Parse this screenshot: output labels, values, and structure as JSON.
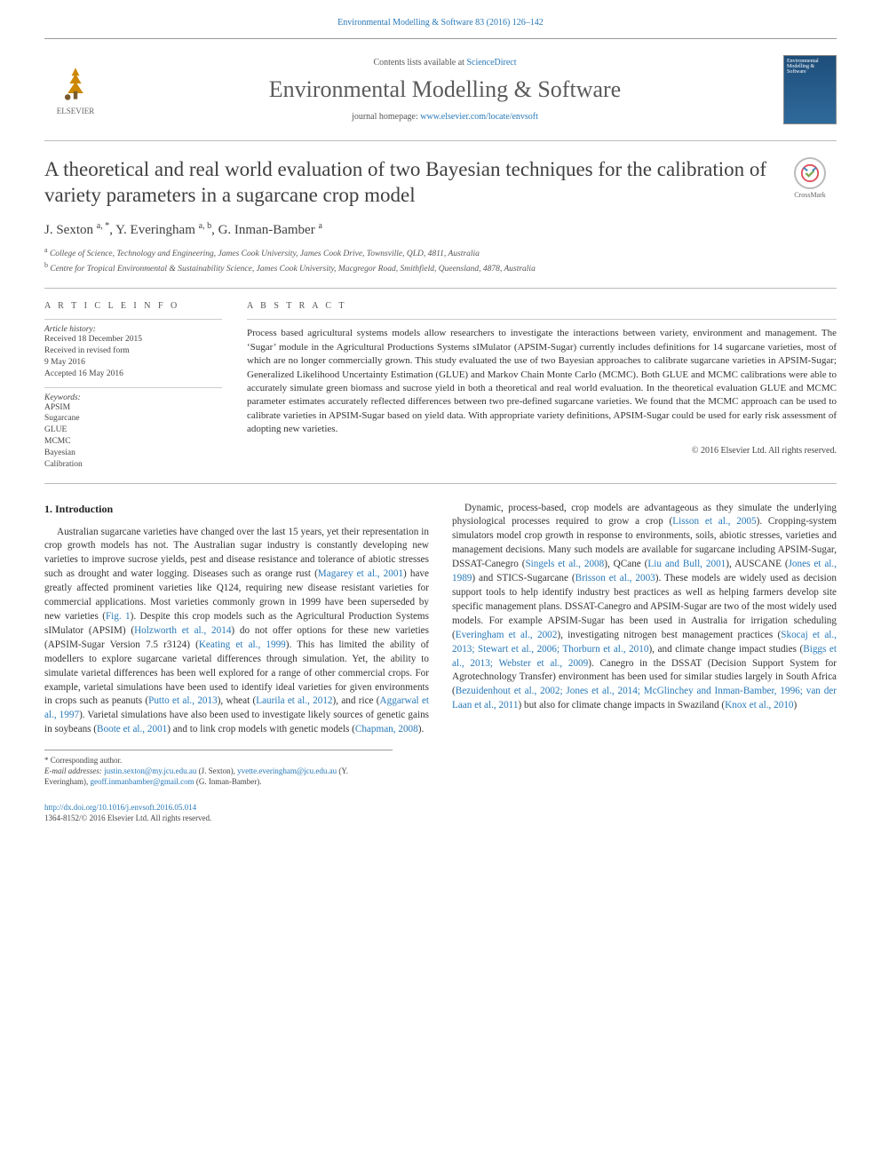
{
  "running_head": "Environmental Modelling & Software 83 (2016) 126–142",
  "masthead": {
    "contents_prefix": "Contents lists available at ",
    "contents_link": "ScienceDirect",
    "journal": "Environmental Modelling & Software",
    "homepage_prefix": "journal homepage: ",
    "homepage_link": "www.elsevier.com/locate/envsoft",
    "publisher": "ELSEVIER"
  },
  "cover_thumb": {
    "top_text": "Environmental Modelling & Software",
    "accent_color": "#1e4e7a"
  },
  "title": "A theoretical and real world evaluation of two Bayesian techniques for the calibration of variety parameters in a sugarcane crop model",
  "crossmark_label": "CrossMark",
  "authors_html": "J. Sexton <sup>a, *</sup>, Y. Everingham <sup>a, b</sup>, G. Inman-Bamber <sup>a</sup>",
  "affiliations": [
    {
      "sup": "a",
      "text": "College of Science, Technology and Engineering, James Cook University, James Cook Drive, Townsville, QLD, 4811, Australia"
    },
    {
      "sup": "b",
      "text": "Centre for Tropical Environmental & Sustainability Science, James Cook University, Macgregor Road, Smithfield, Queensland, 4878, Australia"
    }
  ],
  "section_heads": {
    "article_info": "A R T I C L E  I N F O",
    "abstract": "A B S T R A C T"
  },
  "history": {
    "label": "Article history:",
    "items": [
      "Received 18 December 2015",
      "Received in revised form",
      "9 May 2016",
      "Accepted 16 May 2016"
    ]
  },
  "keywords": {
    "label": "Keywords:",
    "items": [
      "APSIM",
      "Sugarcane",
      "GLUE",
      "MCMC",
      "Bayesian",
      "Calibration"
    ]
  },
  "abstract": "Process based agricultural systems models allow researchers to investigate the interactions between variety, environment and management. The ‘Sugar’ module in the Agricultural Productions Systems sIMulator (APSIM-Sugar) currently includes definitions for 14 sugarcane varieties, most of which are no longer commercially grown. This study evaluated the use of two Bayesian approaches to calibrate sugarcane varieties in APSIM-Sugar; Generalized Likelihood Uncertainty Estimation (GLUE) and Markov Chain Monte Carlo (MCMC). Both GLUE and MCMC calibrations were able to accurately simulate green biomass and sucrose yield in both a theoretical and real world evaluation. In the theoretical evaluation GLUE and MCMC parameter estimates accurately reflected differences between two pre-defined sugarcane varieties. We found that the MCMC approach can be used to calibrate varieties in APSIM-Sugar based on yield data. With appropriate variety definitions, APSIM-Sugar could be used for early risk assessment of adopting new varieties.",
  "copyright_line": "© 2016 Elsevier Ltd. All rights reserved.",
  "intro_head": "1. Introduction",
  "intro_p1_pre": "Australian sugarcane varieties have changed over the last 15 years, yet their representation in crop growth models has not. The Australian sugar industry is constantly developing new varieties to improve sucrose yields, pest and disease resistance and tolerance of abiotic stresses such as drought and water logging. Diseases such as orange rust (",
  "cite_magarey": "Magarey et al., 2001",
  "intro_p1_mid1": ") have greatly affected prominent varieties like Q124, requiring new disease resistant varieties for commercial applications. Most varieties commonly grown in 1999 have been superseded by new varieties (",
  "figref1": "Fig. 1",
  "intro_p1_mid2": "). Despite this crop models such as the Agricultural Production Systems sIMulator (APSIM) (",
  "cite_holzworth": "Holzworth et al., 2014",
  "intro_p1_mid3": ") do not offer options for these new varieties (APSIM-Sugar Version 7.5 r3124) (",
  "cite_keating": "Keating et al., 1999",
  "intro_p1_mid4": "). This has limited the ability of modellers to explore sugarcane varietal differences through simulation. Yet, the ability to simulate varietal differences has been well explored for a range of other commercial crops. For example, varietal simulations have been used to identify ideal varieties for given environments in crops such as peanuts (",
  "cite_putto": "Putto et al., 2013",
  "intro_p1_mid5": "), wheat (",
  "cite_laurila": "Laurila et al., 2012",
  "intro_p1_mid6": "), and rice (",
  "cite_aggarwal": "Aggarwal et al., 1997",
  "intro_p1_mid7": "). Varietal simulations have also been used to investigate likely sources of genetic gains in soybeans (",
  "cite_boote": "Boote et al., 2001",
  "intro_p1_mid8": ") and to link crop models with genetic models (",
  "cite_chapman": "Chapman, 2008",
  "intro_p1_end": ").",
  "intro_p2_pre": "Dynamic, process-based, crop models are advantageous as they simulate the underlying physiological processes required to grow a crop (",
  "cite_lisson": "Lisson et al., 2005",
  "intro_p2_mid1": "). Cropping-system simulators model crop growth in response to environments, soils, abiotic stresses, varieties and management decisions. Many such models are available for sugarcane including APSIM-Sugar, DSSAT-Canegro (",
  "cite_singels": "Singels et al., 2008",
  "intro_p2_mid2": "), QCane (",
  "cite_liu": "Liu and Bull, 2001",
  "intro_p2_mid3": "), AUSCANE (",
  "cite_jones89": "Jones et al., 1989",
  "intro_p2_mid4": ") and STICS-Sugarcane (",
  "cite_brisson": "Brisson et al., 2003",
  "intro_p2_mid5": "). These models are widely used as decision support tools to help identify industry best practices as well as helping farmers develop site specific management plans. DSSAT-Canegro and APSIM-Sugar are two of the most widely used models. For example APSIM-Sugar has been used in Australia for irrigation scheduling (",
  "cite_everingham": "Everingham et al., 2002",
  "intro_p2_mid6": "), investigating nitrogen best management practices (",
  "cite_skocaj": "Skocaj et al., 2013; Stewart et al., 2006; Thorburn et al., 2010",
  "intro_p2_mid7": "), and climate change impact studies (",
  "cite_biggs": "Biggs et al., 2013; Webster et al., 2009",
  "intro_p2_mid8": "). Canegro in the DSSAT (Decision Support System for Agrotechnology Transfer) environment has been used for similar studies largely in South Africa (",
  "cite_bezuidenhout": "Bezuidenhout et al., 2002; Jones et al., 2014; McGlinchey and Inman-Bamber, 1996; van der Laan et al., 2011",
  "intro_p2_mid9": ") but also for climate change impacts in Swaziland (",
  "cite_knox": "Knox et al., 2010",
  "intro_p2_end": ")",
  "footnotes": {
    "corr_label": "* Corresponding author.",
    "email_label": "E-mail addresses:",
    "emails": [
      {
        "email": "justin.sexton@my.jcu.edu.au",
        "name": "(J. Sexton)"
      },
      {
        "email": "yvette.everingham@jcu.edu.au",
        "name": "(Y. Everingham)"
      },
      {
        "email": "geoff.inmanbamber@gmail.com",
        "name": "(G. Inman-Bamber)"
      }
    ]
  },
  "footer": {
    "doi": "http://dx.doi.org/10.1016/j.envsoft.2016.05.014",
    "issn_line": "1364-8152/© 2016 Elsevier Ltd. All rights reserved."
  },
  "colors": {
    "link": "#2879b8",
    "text": "#333333",
    "rule": "#bbbbbb"
  },
  "fontsizes": {
    "title": 23,
    "journal": 26,
    "body": 11.2,
    "abstract": 11,
    "small": 9.5
  }
}
